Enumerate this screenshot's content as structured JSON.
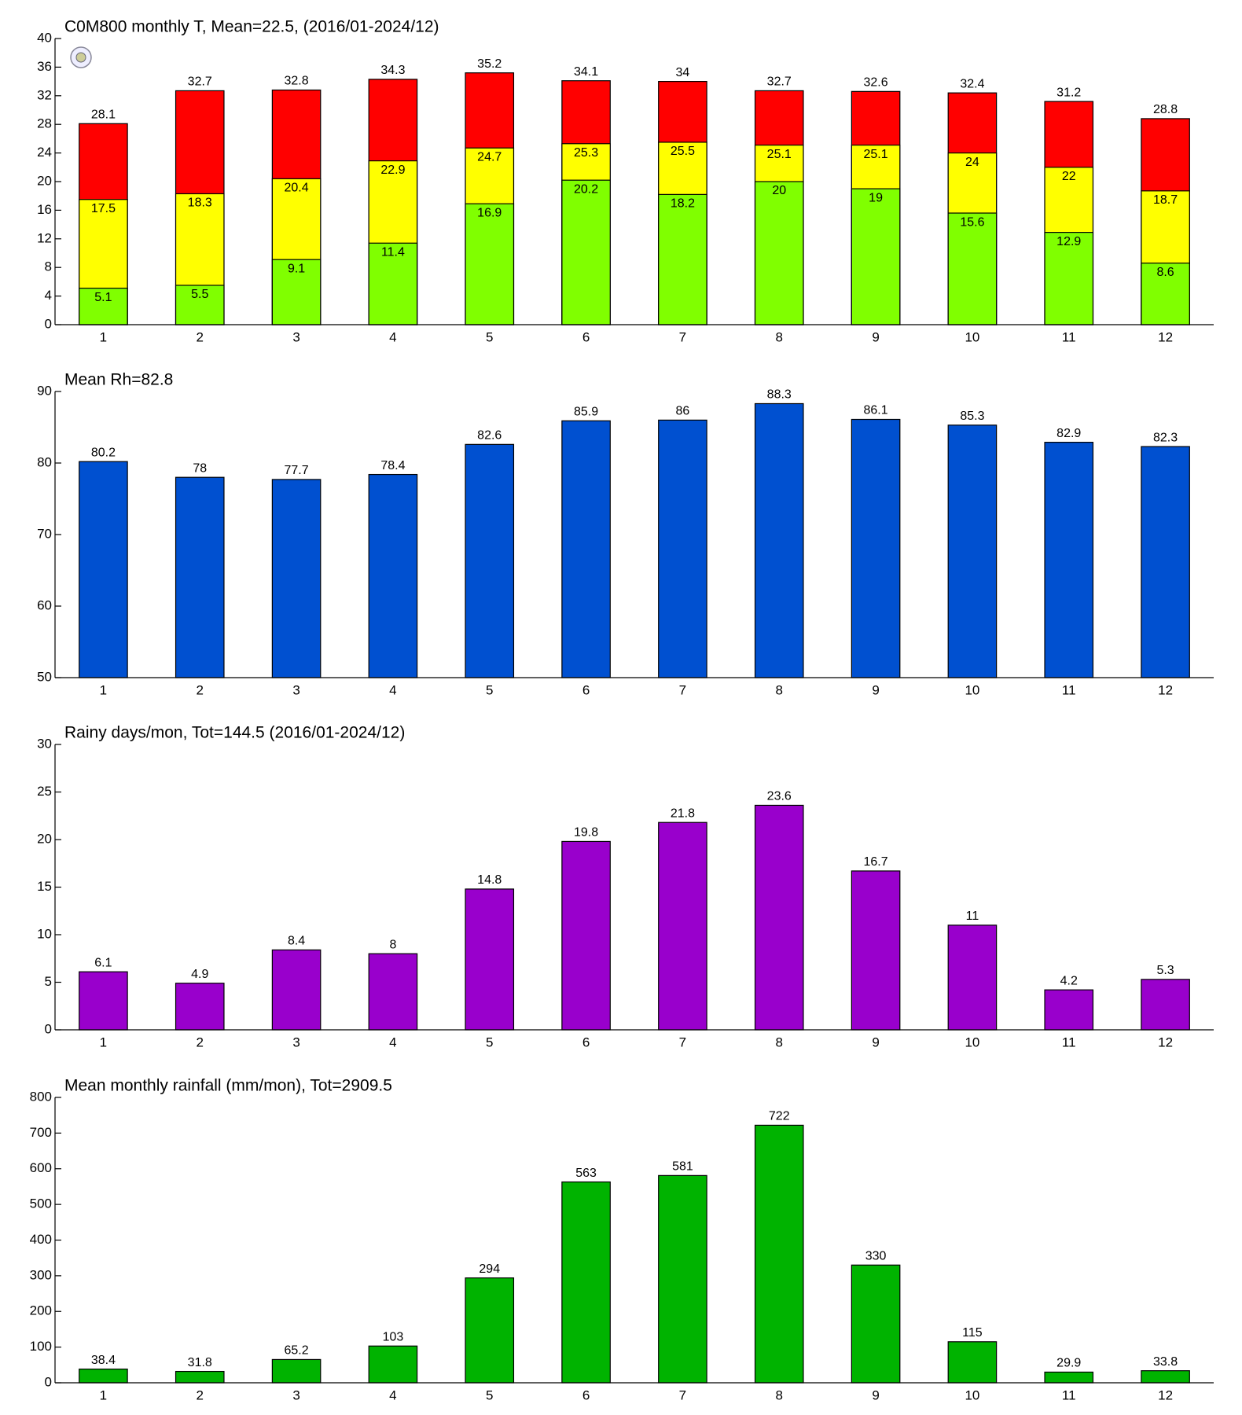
{
  "chart_data": [
    {
      "type": "bar",
      "title": "C0M800 monthly T, Mean=22.5, (2016/01-2024/12)",
      "categories": [
        "1",
        "2",
        "3",
        "4",
        "5",
        "6",
        "7",
        "8",
        "9",
        "10",
        "11",
        "12"
      ],
      "series": [
        {
          "color": "#ff0000",
          "values": [
            28.1,
            32.7,
            32.8,
            34.3,
            35.2,
            34.1,
            34,
            32.7,
            32.6,
            32.4,
            31.2,
            28.8
          ]
        },
        {
          "color": "#ffff00",
          "values": [
            17.5,
            18.3,
            20.4,
            22.9,
            24.7,
            25.3,
            25.5,
            25.1,
            25.1,
            24,
            22,
            18.7
          ]
        },
        {
          "color": "#80ff00",
          "values": [
            5.1,
            5.5,
            9.1,
            11.4,
            16.9,
            20.2,
            18.2,
            20,
            19,
            15.6,
            12.9,
            8.6
          ]
        }
      ],
      "ylim": [
        0,
        40
      ],
      "yticks": [
        0,
        4,
        8,
        12,
        16,
        20,
        24,
        28,
        32,
        36,
        40
      ]
    },
    {
      "type": "bar",
      "title": "Mean Rh=82.8",
      "categories": [
        "1",
        "2",
        "3",
        "4",
        "5",
        "6",
        "7",
        "8",
        "9",
        "10",
        "11",
        "12"
      ],
      "series": [
        {
          "color": "#0050d0",
          "values": [
            80.2,
            78,
            77.7,
            78.4,
            82.6,
            85.9,
            86,
            88.3,
            86.1,
            85.3,
            82.9,
            82.3
          ]
        }
      ],
      "ylim": [
        50,
        90
      ],
      "yticks": [
        50,
        60,
        70,
        80,
        90
      ]
    },
    {
      "type": "bar",
      "title": "Rainy days/mon, Tot=144.5 (2016/01-2024/12)",
      "categories": [
        "1",
        "2",
        "3",
        "4",
        "5",
        "6",
        "7",
        "8",
        "9",
        "10",
        "11",
        "12"
      ],
      "series": [
        {
          "color": "#9900cc",
          "values": [
            6.1,
            4.9,
            8.4,
            8,
            14.8,
            19.8,
            21.8,
            23.6,
            16.7,
            11,
            4.2,
            5.3
          ]
        }
      ],
      "ylim": [
        0,
        30
      ],
      "yticks": [
        0,
        5,
        10,
        15,
        20,
        25,
        30
      ]
    },
    {
      "type": "bar",
      "title": "Mean monthly rainfall (mm/mon), Tot=2909.5",
      "categories": [
        "1",
        "2",
        "3",
        "4",
        "5",
        "6",
        "7",
        "8",
        "9",
        "10",
        "11",
        "12"
      ],
      "series": [
        {
          "color": "#00b300",
          "values": [
            38.4,
            31.8,
            65.2,
            103,
            294,
            563,
            581,
            722,
            330,
            115,
            29.9,
            33.8
          ]
        }
      ],
      "ylim": [
        0,
        800
      ],
      "yticks": [
        0,
        100,
        200,
        300,
        400,
        500,
        600,
        700,
        800
      ]
    }
  ]
}
